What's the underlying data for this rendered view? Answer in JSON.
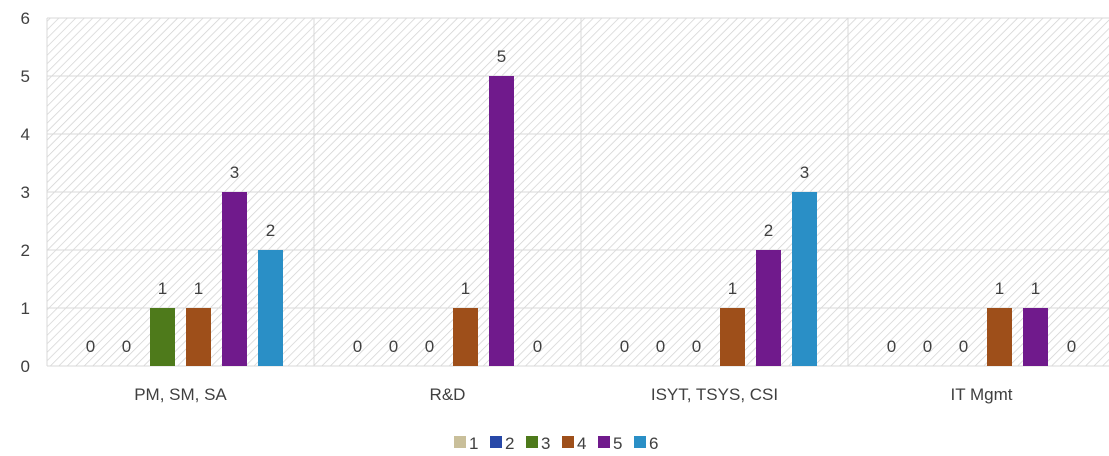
{
  "chart_data": {
    "type": "bar",
    "categories": [
      "PM, SM, SA",
      "R&D",
      "ISYT, TSYS, CSI",
      "IT Mgmt"
    ],
    "series": [
      {
        "name": "1",
        "color": "#c9bf9a",
        "values": [
          0,
          0,
          0,
          0
        ]
      },
      {
        "name": "2",
        "color": "#2748a8",
        "values": [
          0,
          0,
          0,
          0
        ]
      },
      {
        "name": "3",
        "color": "#4e7a1b",
        "values": [
          1,
          0,
          0,
          0
        ]
      },
      {
        "name": "4",
        "color": "#9e4f1a",
        "values": [
          1,
          1,
          1,
          1
        ]
      },
      {
        "name": "5",
        "color": "#701a8c",
        "values": [
          3,
          5,
          2,
          1
        ]
      },
      {
        "name": "6",
        "color": "#2a8fc6",
        "values": [
          2,
          0,
          3,
          0
        ]
      }
    ],
    "ylim": [
      0,
      6
    ],
    "yticks": [
      "0",
      "1",
      "2",
      "3",
      "4",
      "5",
      "6"
    ],
    "title": "",
    "xlabel": "",
    "ylabel": "",
    "grid": true,
    "legend_position": "bottom",
    "background": "diagonal-hatch"
  }
}
